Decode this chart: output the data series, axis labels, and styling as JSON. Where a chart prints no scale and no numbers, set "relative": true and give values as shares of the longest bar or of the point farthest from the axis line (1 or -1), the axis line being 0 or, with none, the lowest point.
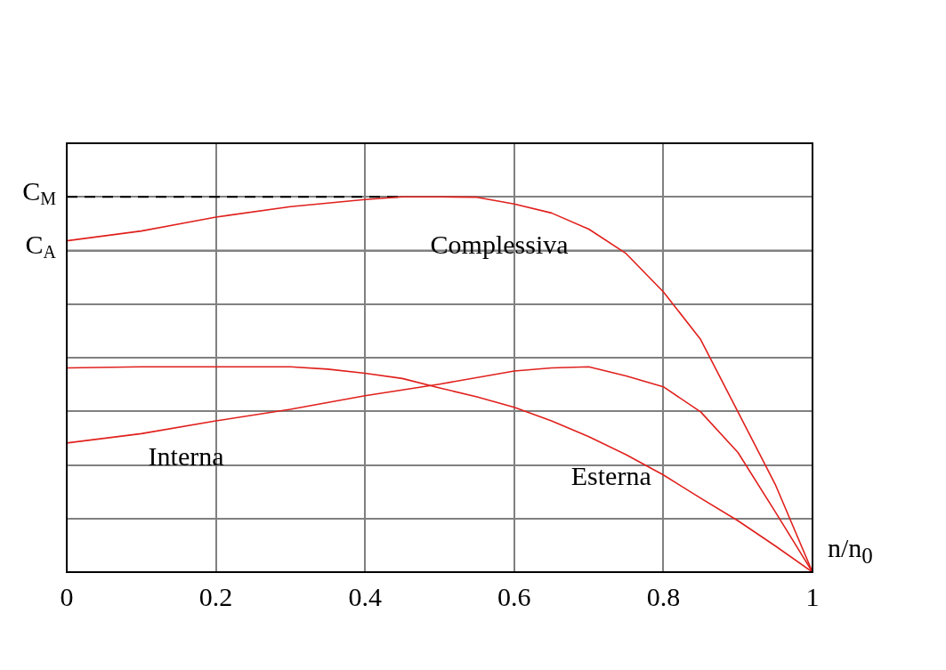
{
  "chart_data": {
    "type": "line",
    "relative": true,
    "xlabel": "n/n$_{0}$",
    "xlim": [
      0,
      1
    ],
    "xticks": [
      0,
      0.2,
      0.4,
      0.6,
      0.8,
      1
    ],
    "grid": true,
    "legend": false,
    "marker": "none",
    "line_style": "solid",
    "series": [
      {
        "name": "Complessiva",
        "color": "#e0201c",
        "x": [
          0,
          0.1,
          0.2,
          0.3,
          0.4,
          0.45,
          0.5,
          0.55,
          0.6,
          0.65,
          0.7,
          0.75,
          0.8,
          0.85,
          0.9,
          0.95,
          1
        ],
        "values": [
          0.883,
          0.909,
          0.946,
          0.974,
          0.993,
          1,
          1,
          0.999,
          0.981,
          0.957,
          0.914,
          0.849,
          0.747,
          0.62,
          0.427,
          0.234,
          0
        ]
      },
      {
        "name": "Interna",
        "color": "#e0201c",
        "x": [
          0,
          0.1,
          0.2,
          0.3,
          0.4,
          0.5,
          0.6,
          0.65,
          0.7,
          0.75,
          0.8,
          0.85,
          0.9,
          0.95,
          1
        ],
        "values": [
          0.344,
          0.369,
          0.403,
          0.434,
          0.47,
          0.501,
          0.536,
          0.544,
          0.547,
          0.523,
          0.494,
          0.427,
          0.319,
          0.161,
          0
        ]
      },
      {
        "name": "Esterna",
        "color": "#e0201c",
        "x": [
          0,
          0.1,
          0.2,
          0.3,
          0.35,
          0.4,
          0.45,
          0.5,
          0.55,
          0.6,
          0.65,
          0.7,
          0.75,
          0.8,
          0.85,
          0.9,
          0.95,
          1
        ],
        "values": [
          0.544,
          0.547,
          0.547,
          0.547,
          0.541,
          0.53,
          0.516,
          0.491,
          0.467,
          0.439,
          0.403,
          0.361,
          0.313,
          0.259,
          0.197,
          0.137,
          0.07,
          0
        ]
      }
    ],
    "ref_lines": [
      {
        "axis": "y",
        "value": 1,
        "label": "C$_{M}$",
        "color": "#000000",
        "line_style": "dashed"
      },
      {
        "axis": "y",
        "value": 0.857,
        "label": "C$_{A}$",
        "color": "#808080",
        "line_style": "solid"
      }
    ]
  }
}
